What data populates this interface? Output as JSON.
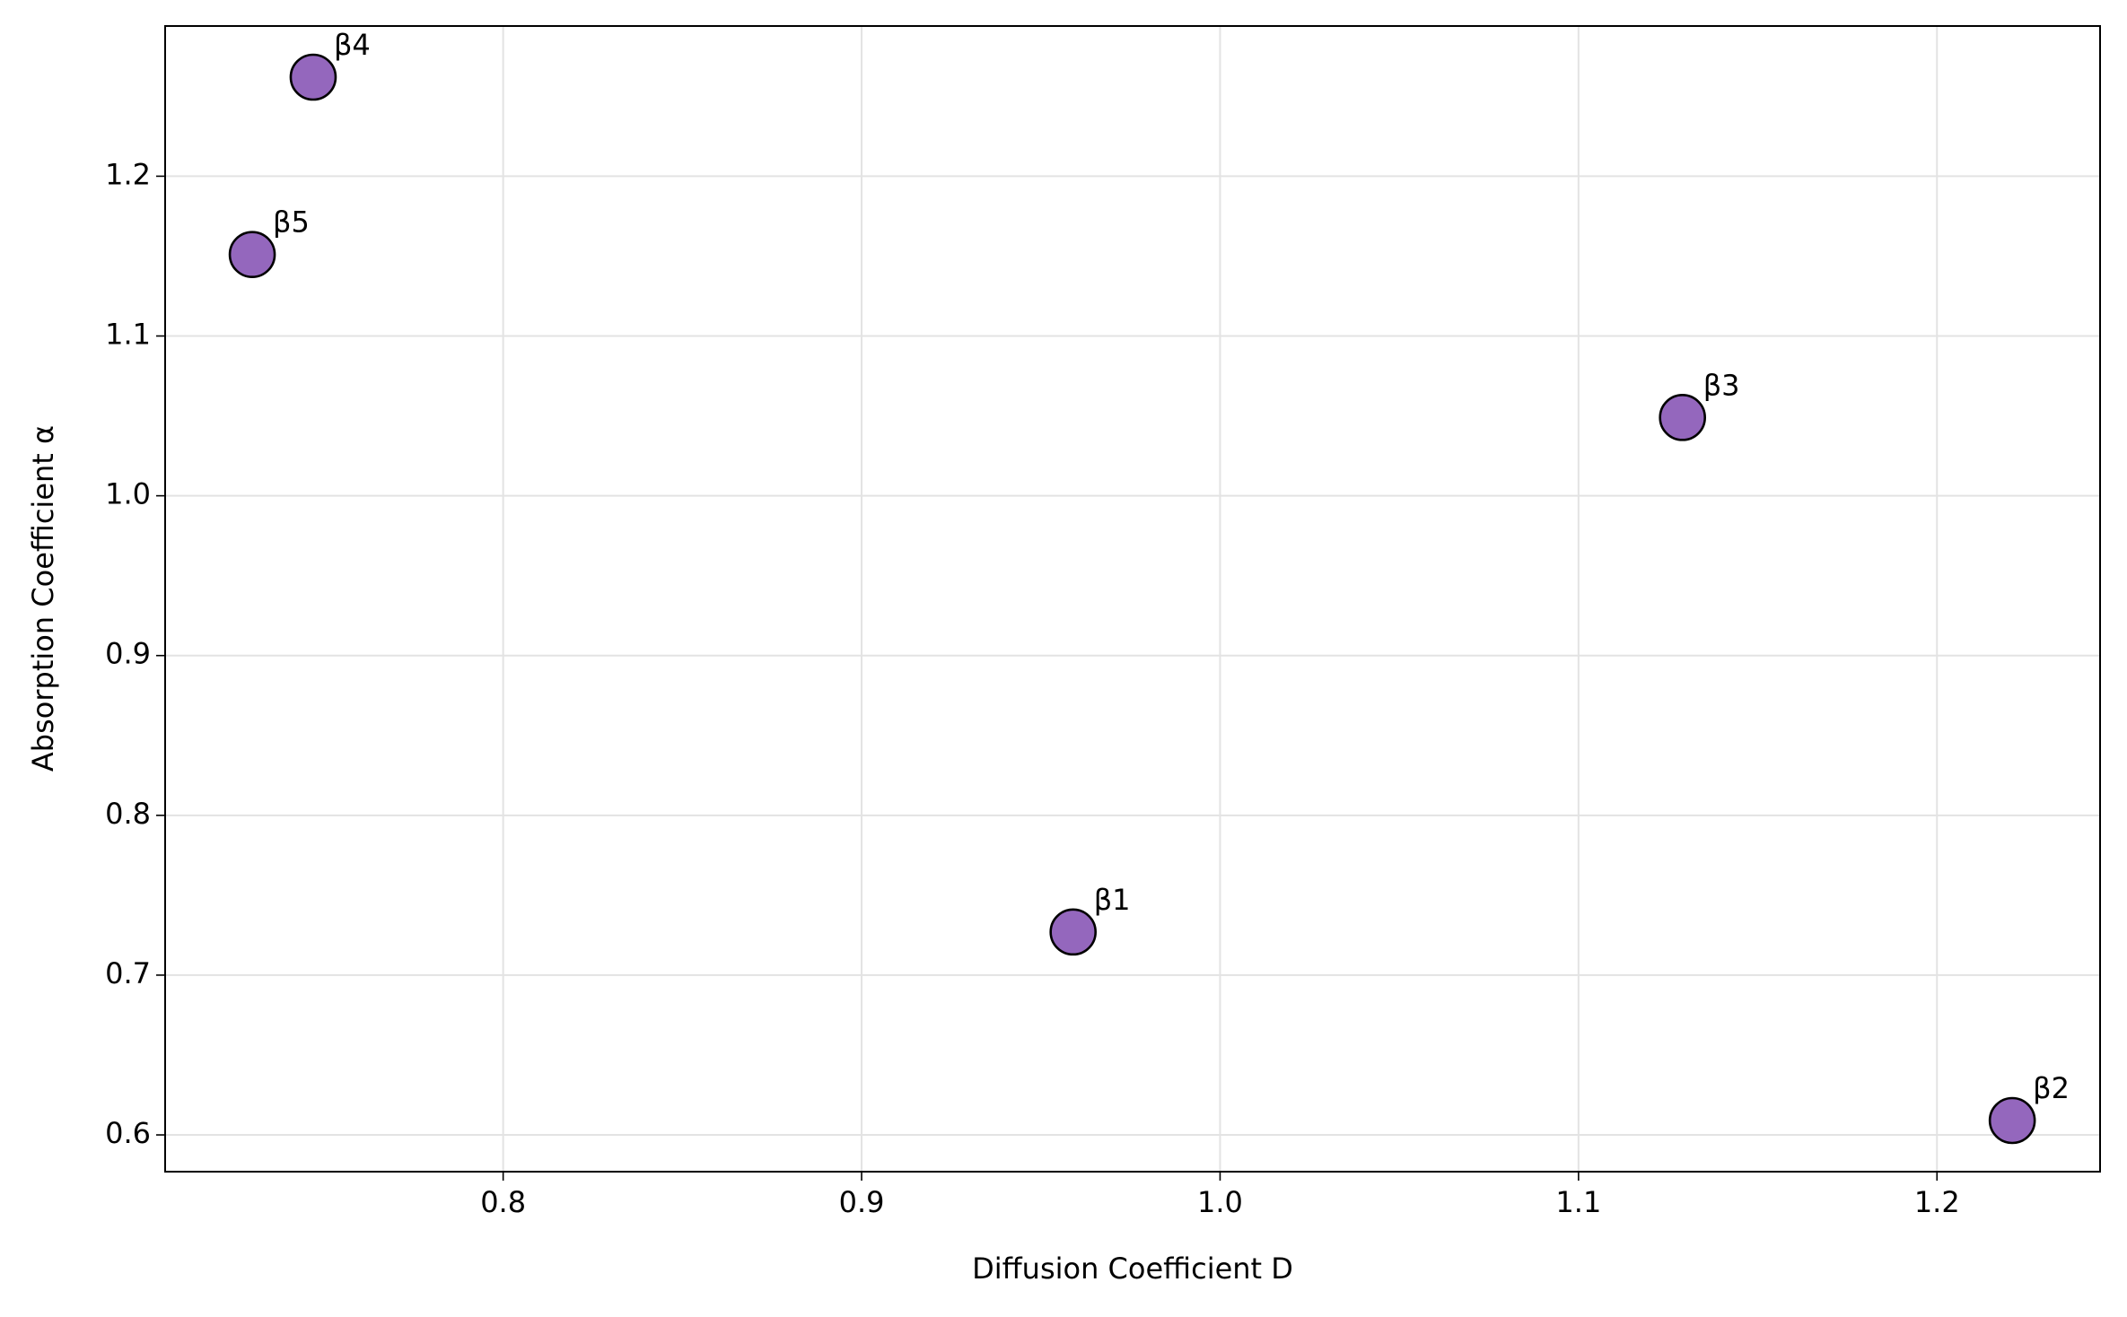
{
  "chart_data": {
    "type": "scatter",
    "x_label": "Diffusion Coefficient D",
    "y_label": "Absorption Coefficient α",
    "labels": [
      "β1",
      "β2",
      "β3",
      "β4",
      "β5"
    ],
    "x": [
      0.959,
      1.221,
      1.129,
      0.747,
      0.73
    ],
    "y": [
      0.727,
      0.609,
      1.049,
      1.262,
      1.151
    ],
    "color": "#9467bd",
    "xlim": [
      0.7057,
      1.2455
    ],
    "ylim": [
      0.577,
      1.294
    ],
    "xticks": [
      0.8,
      0.9,
      {
        "value": 1,
        "label": "1.0"
      },
      1.1,
      1.2
    ],
    "yticks": [
      0.6,
      0.7,
      0.8,
      0.9,
      {
        "value": 1,
        "label": "1.0"
      },
      1.1,
      1.2
    ],
    "grid": true
  }
}
